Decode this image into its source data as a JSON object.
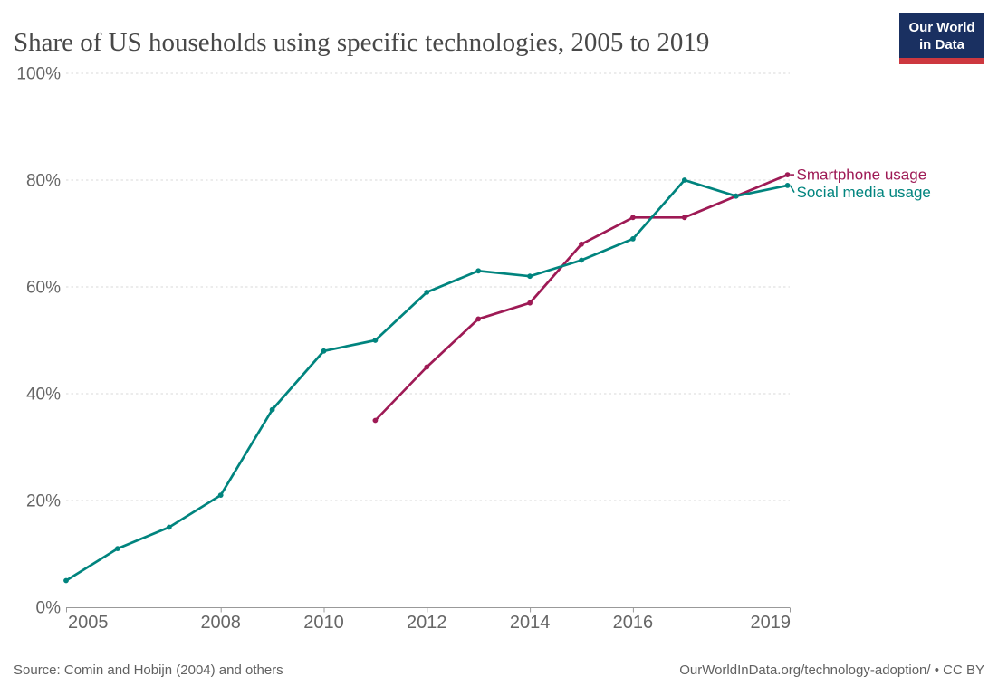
{
  "header": {
    "title": "Share of US households using specific technologies, 2005 to 2019",
    "logo": {
      "line1": "Our World",
      "line2": "in Data",
      "bg_color": "#1A3061",
      "accent_color": "#CD383F"
    }
  },
  "chart_data": {
    "type": "line",
    "title": "Share of US households using specific technologies, 2005 to 2019",
    "xlabel": "",
    "ylabel": "",
    "xlim": [
      2005,
      2019
    ],
    "ylim": [
      0,
      100
    ],
    "x_ticks": [
      2005,
      2008,
      2010,
      2012,
      2014,
      2016,
      2019
    ],
    "y_ticks": [
      0,
      20,
      40,
      60,
      80,
      100
    ],
    "y_tick_suffix": "%",
    "grid": "horizontal-dashed",
    "grid_color": "#d9d9d9",
    "axis_color": "#999999",
    "tick_label_color": "#666666",
    "legend_position": "line-end-labels-right",
    "series": [
      {
        "name": "Smartphone usage",
        "color": "#9E1A55",
        "x": [
          2011,
          2012,
          2013,
          2014,
          2015,
          2016,
          2017,
          2018,
          2019
        ],
        "values": [
          35,
          45,
          54,
          57,
          68,
          73,
          73,
          77,
          81
        ]
      },
      {
        "name": "Social media usage",
        "color": "#00847E",
        "x": [
          2005,
          2006,
          2007,
          2008,
          2009,
          2010,
          2011,
          2012,
          2013,
          2014,
          2015,
          2016,
          2017,
          2018,
          2019
        ],
        "values": [
          5,
          11,
          15,
          21,
          37,
          48,
          50,
          59,
          63,
          62,
          65,
          69,
          80,
          77,
          79
        ]
      }
    ]
  },
  "footer": {
    "source": "Source: Comin and Hobijn (2004) and others",
    "attribution": "OurWorldInData.org/technology-adoption/ • CC BY"
  }
}
